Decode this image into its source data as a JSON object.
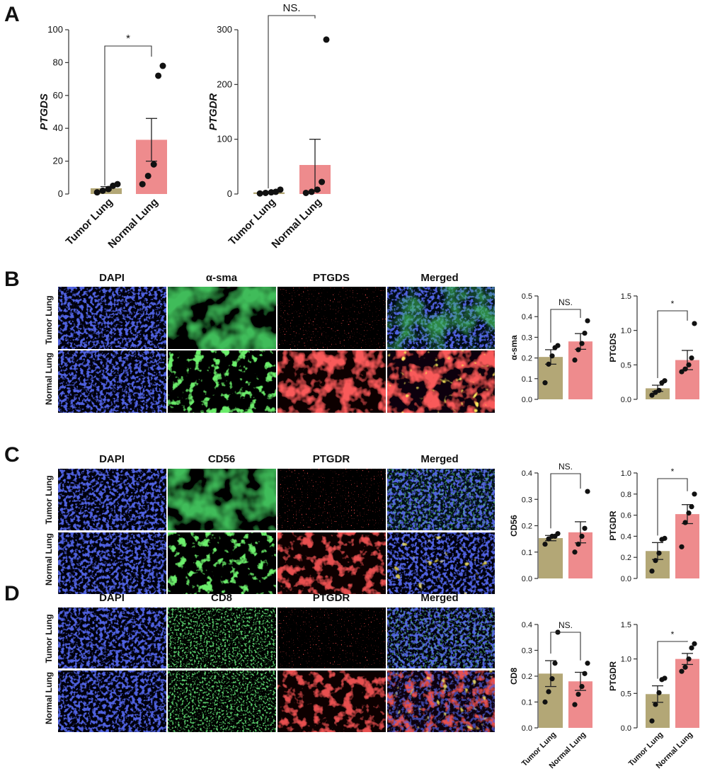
{
  "figure": {
    "panel_labels": [
      "A",
      "B",
      "C",
      "D"
    ],
    "colors": {
      "tumor": "#b3a776",
      "normal": "#ee8b8d",
      "dot": "#111111"
    },
    "panels": [
      {
        "label": "B",
        "channels": [
          "DAPI",
          "α-sma",
          "PTGDS",
          "Merged"
        ],
        "rows": [
          "Tumor Lung",
          "Normal Lung"
        ]
      },
      {
        "label": "C",
        "channels": [
          "DAPI",
          "CD56",
          "PTGDR",
          "Merged"
        ],
        "rows": [
          "Tumor Lung",
          "Normal Lung"
        ]
      },
      {
        "label": "D",
        "channels": [
          "DAPI",
          "CD8",
          "PTGDR",
          "Merged"
        ],
        "rows": [
          "Tumor Lung",
          "Normal Lung"
        ]
      }
    ]
  },
  "chart_data": [
    {
      "type": "bar",
      "panel": "A",
      "categories": [
        "Tumor Lung",
        "Normal Lung"
      ],
      "ylabel": "PTGDS",
      "ylim": [
        0,
        100
      ],
      "yticks": [
        0,
        20,
        40,
        60,
        80,
        100
      ],
      "values": [
        3.5,
        33
      ],
      "sem": [
        1.0,
        13
      ],
      "points": [
        [
          1,
          2,
          3,
          5,
          6
        ],
        [
          6,
          11,
          18,
          72,
          78
        ]
      ],
      "significance": "*"
    },
    {
      "type": "bar",
      "panel": "A",
      "categories": [
        "Tumor Lung",
        "Normal Lung"
      ],
      "ylabel": "PTGDR",
      "ylim": [
        0,
        300
      ],
      "yticks": [
        0,
        100,
        200,
        300
      ],
      "values": [
        3,
        53
      ],
      "sem": [
        1.5,
        47
      ],
      "points": [
        [
          1,
          2,
          3,
          4,
          8
        ],
        [
          2,
          4,
          8,
          22,
          282
        ]
      ],
      "significance": "NS."
    },
    {
      "type": "bar",
      "panel": "B",
      "categories": [
        "Tumor Lung",
        "Normal Lung"
      ],
      "ylabel": "α-sma",
      "ylim": [
        0,
        0.5
      ],
      "yticks": [
        "0.0",
        "0.1",
        "0.2",
        "0.3",
        "0.4",
        "0.5"
      ],
      "values": [
        0.205,
        0.28
      ],
      "sem": [
        0.035,
        0.038
      ],
      "points": [
        [
          0.08,
          0.17,
          0.21,
          0.25,
          0.26
        ],
        [
          0.19,
          0.24,
          0.27,
          0.32,
          0.38
        ]
      ],
      "significance": "NS."
    },
    {
      "type": "bar",
      "panel": "B",
      "categories": [
        "Tumor Lung",
        "Normal Lung"
      ],
      "ylabel": "PTGDS",
      "ylim": [
        0,
        1.5
      ],
      "yticks": [
        "0.0",
        "0.5",
        "1.0",
        "1.5"
      ],
      "values": [
        0.16,
        0.57
      ],
      "sem": [
        0.045,
        0.14
      ],
      "points": [
        [
          0.06,
          0.1,
          0.13,
          0.24,
          0.27
        ],
        [
          0.4,
          0.44,
          0.5,
          0.6,
          1.1
        ]
      ],
      "significance": "*"
    },
    {
      "type": "bar",
      "panel": "C",
      "categories": [
        "Tumor Lung",
        "Normal Lung"
      ],
      "ylabel": "CD56",
      "ylim": [
        0,
        0.4
      ],
      "yticks": [
        "0.0",
        "0.1",
        "0.2",
        "0.3",
        "0.4"
      ],
      "values": [
        0.153,
        0.175
      ],
      "sem": [
        0.01,
        0.04
      ],
      "points": [
        [
          0.13,
          0.15,
          0.16,
          0.16,
          0.17
        ],
        [
          0.1,
          0.13,
          0.16,
          0.19,
          0.33
        ]
      ],
      "significance": "NS."
    },
    {
      "type": "bar",
      "panel": "C",
      "categories": [
        "Tumor Lung",
        "Normal Lung"
      ],
      "ylabel": "PTGDR",
      "ylim": [
        0,
        1.0
      ],
      "yticks": [
        "0.0",
        "0.2",
        "0.4",
        "0.6",
        "0.8",
        "1.0"
      ],
      "values": [
        0.26,
        0.61
      ],
      "sem": [
        0.08,
        0.09
      ],
      "points": [
        [
          0.07,
          0.17,
          0.24,
          0.37,
          0.38
        ],
        [
          0.3,
          0.53,
          0.62,
          0.68,
          0.8
        ]
      ],
      "significance": "*"
    },
    {
      "type": "bar",
      "panel": "D",
      "categories": [
        "Tumor Lung",
        "Normal Lung"
      ],
      "ylabel": "CD8",
      "ylim": [
        0,
        0.4
      ],
      "yticks": [
        "0.0",
        "0.1",
        "0.2",
        "0.3",
        "0.4"
      ],
      "values": [
        0.21,
        0.18
      ],
      "sem": [
        0.05,
        0.035
      ],
      "points": [
        [
          0.1,
          0.14,
          0.19,
          0.25,
          0.37
        ],
        [
          0.09,
          0.13,
          0.16,
          0.21,
          0.25
        ]
      ],
      "significance": "NS."
    },
    {
      "type": "bar",
      "panel": "D",
      "categories": [
        "Tumor Lung",
        "Normal Lung"
      ],
      "ylabel": "PTGDR",
      "ylim": [
        0,
        1.5
      ],
      "yticks": [
        "0.0",
        "0.5",
        "1.0",
        "1.5"
      ],
      "values": [
        0.49,
        1.0
      ],
      "sem": [
        0.12,
        0.08
      ],
      "points": [
        [
          0.1,
          0.34,
          0.51,
          0.7,
          0.72
        ],
        [
          0.82,
          0.88,
          1.0,
          1.16,
          1.22
        ]
      ],
      "significance": "*"
    }
  ]
}
